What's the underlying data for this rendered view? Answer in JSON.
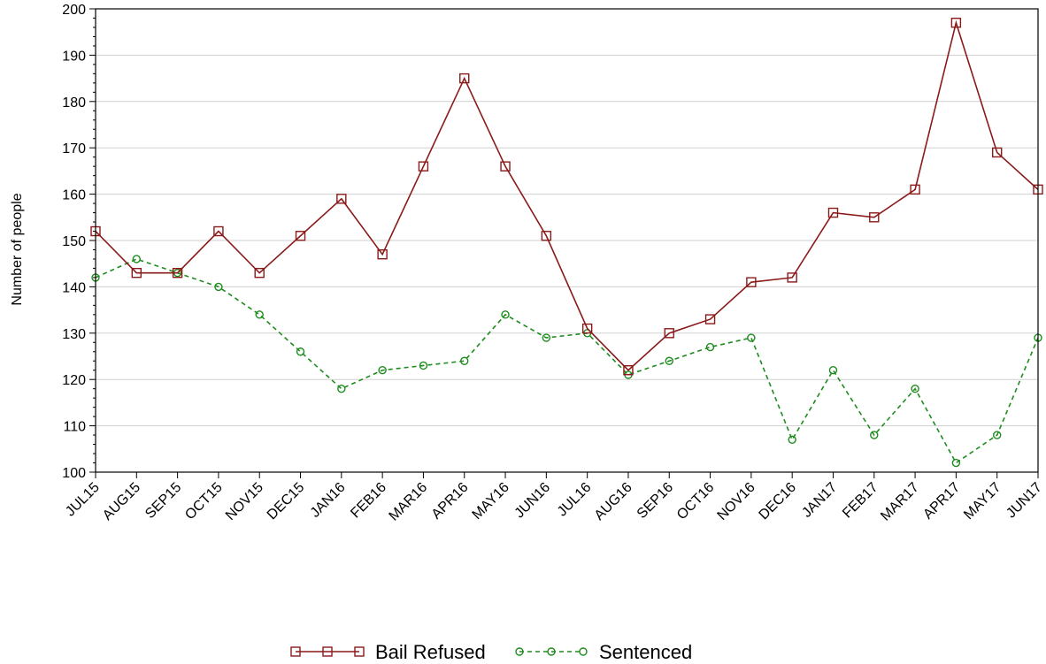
{
  "chart_data": {
    "type": "line",
    "ylabel": "Number of people",
    "xlabel": "",
    "ylim": [
      100,
      200
    ],
    "yticks": [
      100,
      110,
      120,
      130,
      140,
      150,
      160,
      170,
      180,
      190,
      200
    ],
    "grid": true,
    "legend_position": "bottom",
    "categories": [
      "JUL15",
      "AUG15",
      "SEP15",
      "OCT15",
      "NOV15",
      "DEC15",
      "JAN16",
      "FEB16",
      "MAR16",
      "APR16",
      "MAY16",
      "JUN16",
      "JUL16",
      "AUG16",
      "SEP16",
      "OCT16",
      "NOV16",
      "DEC16",
      "JAN17",
      "FEB17",
      "MAR17",
      "APR17",
      "MAY17",
      "JUN17"
    ],
    "series": [
      {
        "name": "Bail Refused",
        "color": "#8B1A1A",
        "marker": "square",
        "line_style": "solid",
        "values": [
          152,
          143,
          143,
          152,
          143,
          151,
          159,
          147,
          166,
          185,
          166,
          151,
          131,
          122,
          130,
          133,
          141,
          142,
          156,
          155,
          161,
          197,
          169,
          161
        ]
      },
      {
        "name": "Sentenced",
        "color": "#1E8C1E",
        "marker": "circle",
        "line_style": "dashed",
        "values": [
          142,
          146,
          143,
          140,
          134,
          126,
          118,
          122,
          123,
          124,
          134,
          129,
          130,
          121,
          124,
          127,
          129,
          107,
          122,
          108,
          118,
          102,
          108,
          129
        ]
      }
    ]
  }
}
